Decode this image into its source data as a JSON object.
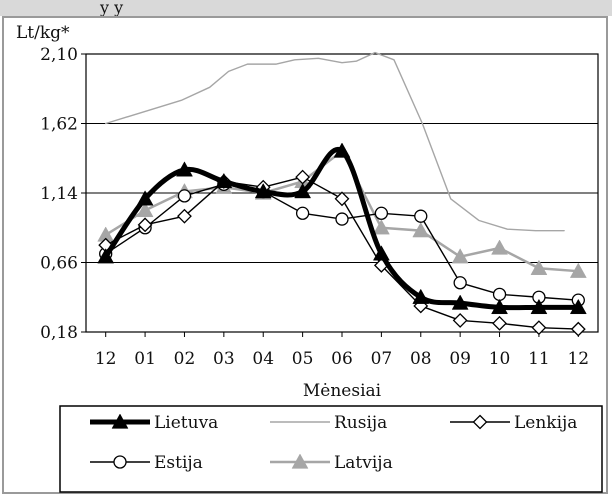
{
  "header_fragment": "y          y",
  "chart_data": {
    "type": "line",
    "title": "",
    "ylabel": "Lt/kg*",
    "xlabel": "Mėnesiai",
    "categories": [
      "12",
      "01",
      "02",
      "03",
      "04",
      "05",
      "06",
      "07",
      "08",
      "09",
      "10",
      "11",
      "12"
    ],
    "yticks": [
      "0,18",
      "0,66",
      "1,14",
      "1,62",
      "2,10"
    ],
    "ylim": [
      0.18,
      2.1
    ],
    "grid": "horizontal",
    "legend_placement": "bottom",
    "series": [
      {
        "name": "Lietuva",
        "color": "#000000",
        "style": "thick",
        "marker": "triangle-filled",
        "smooth": true,
        "values": [
          0.7,
          1.1,
          1.3,
          1.22,
          1.15,
          1.15,
          1.43,
          0.72,
          0.42,
          0.38,
          0.35,
          0.35,
          0.35
        ]
      },
      {
        "name": "Rusija",
        "color": "#a6a6a6",
        "style": "thin",
        "marker": "none",
        "smooth": false,
        "x_fraction_values": [
          [
            0,
            1.62
          ],
          [
            0.08,
            1.7
          ],
          [
            0.16,
            1.78
          ],
          [
            0.22,
            1.87
          ],
          [
            0.26,
            1.98
          ],
          [
            0.3,
            2.03
          ],
          [
            0.36,
            2.03
          ],
          [
            0.4,
            2.06
          ],
          [
            0.45,
            2.07
          ],
          [
            0.5,
            2.04
          ],
          [
            0.53,
            2.05
          ],
          [
            0.57,
            2.11
          ],
          [
            0.61,
            2.06
          ],
          [
            0.67,
            1.62
          ],
          [
            0.73,
            1.1
          ],
          [
            0.79,
            0.95
          ],
          [
            0.85,
            0.89
          ],
          [
            0.91,
            0.88
          ],
          [
            0.97,
            0.88
          ]
        ]
      },
      {
        "name": "Lenkija",
        "color": "#000000",
        "style": "thin",
        "marker": "diamond-open",
        "smooth": false,
        "values": [
          0.78,
          0.92,
          0.98,
          1.22,
          1.18,
          1.25,
          1.1,
          0.64,
          0.36,
          0.26,
          0.24,
          0.21,
          0.2
        ]
      },
      {
        "name": "Estija",
        "color": "#000000",
        "style": "thin",
        "marker": "circle-open",
        "smooth": false,
        "values": [
          0.72,
          0.9,
          1.12,
          1.2,
          1.15,
          1.0,
          0.96,
          1.0,
          0.98,
          0.52,
          0.44,
          0.42,
          0.4
        ]
      },
      {
        "name": "Latvija",
        "color": "#a6a6a6",
        "style": "medium",
        "marker": "triangle-filled",
        "smooth": false,
        "values": [
          0.85,
          1.02,
          1.15,
          1.18,
          1.14,
          1.22,
          1.43,
          0.9,
          0.88,
          0.7,
          0.76,
          0.62,
          0.6
        ]
      }
    ]
  }
}
